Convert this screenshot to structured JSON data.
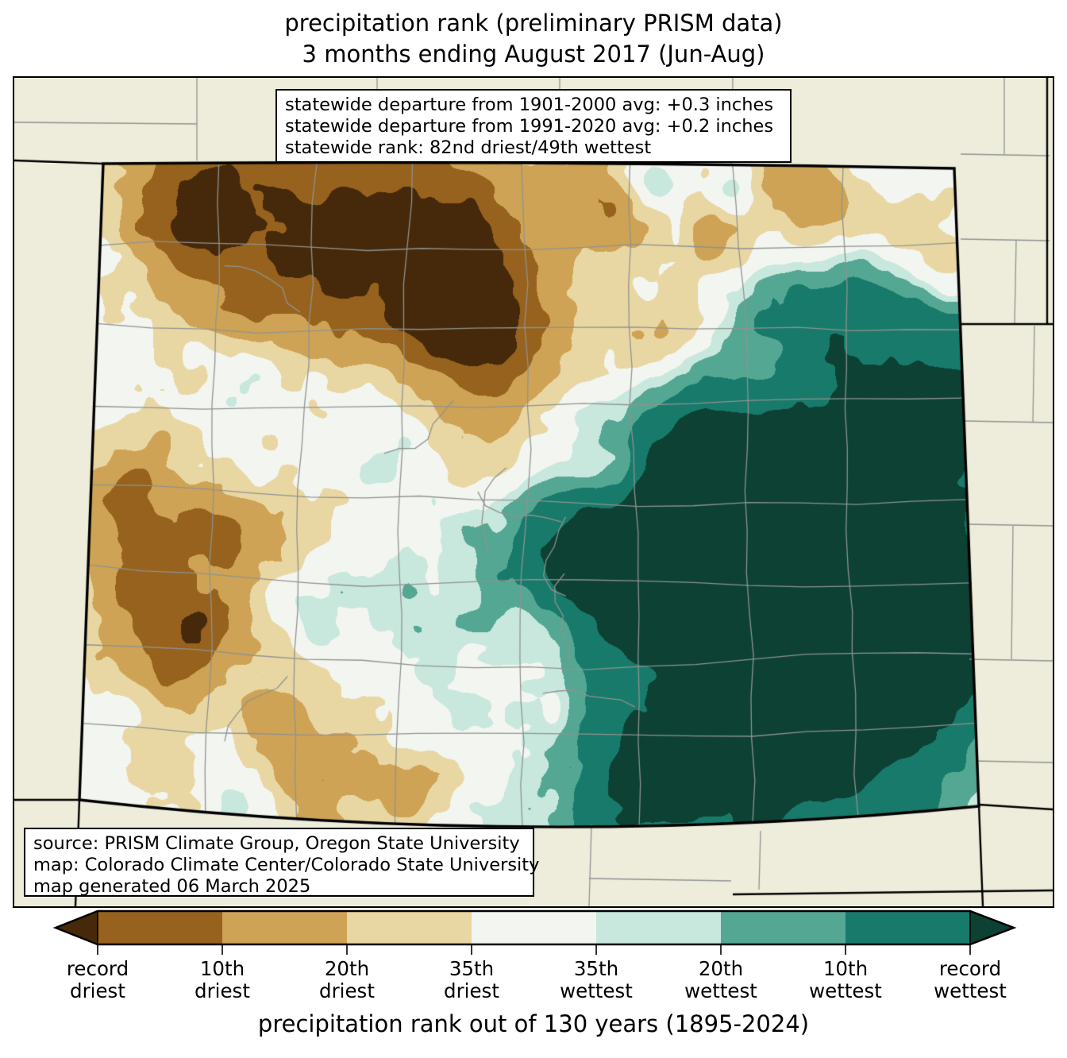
{
  "title": {
    "line1": "precipitation rank (preliminary PRISM data)",
    "line2": "3 months ending August 2017 (Jun-Aug)"
  },
  "stats_box": {
    "lines": [
      "statewide departure from 1901-2000 avg: +0.3 inches",
      "statewide departure from 1991-2020 avg: +0.2 inches",
      "statewide rank: 82nd driest/49th wettest"
    ]
  },
  "source_box": {
    "lines": [
      "source: PRISM Climate Group, Oregon State University",
      "map: Colorado Climate Center/Colorado State University",
      "map generated 06 March 2025"
    ]
  },
  "legend": {
    "caption": "precipitation rank out of 130 years (1895-2024)",
    "labels": [
      "record\ndriest",
      "10th\ndriest",
      "20th\ndriest",
      "35th\ndriest",
      "35th\nwettest",
      "20th\nwettest",
      "10th\nwettest",
      "record\nwettest"
    ],
    "segment_order": [
      "driest_10",
      "driest_20",
      "driest_35",
      "near_normal",
      "wettest_35",
      "wettest_20",
      "wettest_10"
    ],
    "arrow_left": "record_driest",
    "arrow_right": "record_wettest"
  },
  "palette": {
    "record_driest": "#46290a",
    "driest_10": "#96621d",
    "driest_20": "#cfa355",
    "driest_35": "#e9d7a3",
    "near_normal": "#f3f5f1",
    "wettest_35": "#c8e8de",
    "wettest_20": "#54a793",
    "wettest_10": "#187a6b",
    "record_wettest": "#0c4134"
  },
  "map": {
    "region": "Colorado",
    "quantity": "precipitation rank",
    "outside_fill": "#eeeddb",
    "county_line_color": "#8f9390",
    "state_border_color": "#000000",
    "field": {
      "thresholds": [
        -0.6,
        -0.4,
        -0.22,
        -0.08,
        0.08,
        0.18,
        0.34,
        0.62
      ],
      "bins": [
        "record_driest",
        "driest_10",
        "driest_20",
        "driest_35",
        "near_normal",
        "wettest_35",
        "wettest_20",
        "wettest_10",
        "record_wettest"
      ],
      "noise": [
        {
          "scale": 95,
          "amp": 0.13
        },
        {
          "scale": 38,
          "amp": 0.08
        },
        {
          "scale": 17,
          "amp": 0.04
        }
      ],
      "centers": [
        {
          "u": 0.2,
          "v": 0.05,
          "s": 0.11,
          "a": -0.45
        },
        {
          "u": 0.34,
          "v": 0.16,
          "s": 0.09,
          "a": -0.48
        },
        {
          "u": 0.1,
          "v": 0.09,
          "s": 0.06,
          "a": -0.38
        },
        {
          "u": 0.44,
          "v": 0.08,
          "s": 0.06,
          "a": -0.4
        },
        {
          "u": 0.475,
          "v": 0.3,
          "s": 0.07,
          "a": -0.52
        },
        {
          "u": 0.42,
          "v": 0.22,
          "s": 0.06,
          "a": -0.35
        },
        {
          "u": 0.57,
          "v": 0.06,
          "s": 0.05,
          "a": -0.33
        },
        {
          "u": 0.64,
          "v": 0.27,
          "s": 0.055,
          "a": -0.4
        },
        {
          "u": 0.83,
          "v": 0.05,
          "s": 0.05,
          "a": -0.36
        },
        {
          "u": 0.96,
          "v": 0.14,
          "s": 0.045,
          "a": -0.32
        },
        {
          "u": 0.72,
          "v": 0.1,
          "s": 0.04,
          "a": -0.3
        },
        {
          "u": 0.045,
          "v": 0.5,
          "s": 0.055,
          "a": -0.35
        },
        {
          "u": 0.05,
          "v": 0.68,
          "s": 0.065,
          "a": -0.4
        },
        {
          "u": 0.13,
          "v": 0.73,
          "s": 0.05,
          "a": -0.45
        },
        {
          "u": 0.16,
          "v": 0.57,
          "s": 0.045,
          "a": -0.28
        },
        {
          "u": 0.27,
          "v": 0.93,
          "s": 0.05,
          "a": -0.38
        },
        {
          "u": 0.37,
          "v": 0.96,
          "s": 0.04,
          "a": -0.3
        },
        {
          "u": 0.21,
          "v": 0.84,
          "s": 0.04,
          "a": -0.25
        },
        {
          "u": 0.6,
          "v": 0.47,
          "s": 0.03,
          "a": -0.28
        },
        {
          "u": 0.655,
          "v": 0.68,
          "s": 0.025,
          "a": -0.22
        },
        {
          "u": 0.8,
          "v": 0.58,
          "s": 0.17,
          "a": 0.7
        },
        {
          "u": 0.68,
          "v": 0.52,
          "s": 0.08,
          "a": 0.45
        },
        {
          "u": 0.63,
          "v": 0.63,
          "s": 0.07,
          "a": 0.45
        },
        {
          "u": 0.545,
          "v": 0.6,
          "s": 0.05,
          "a": 0.4
        },
        {
          "u": 0.76,
          "v": 0.88,
          "s": 0.11,
          "a": 0.6
        },
        {
          "u": 0.62,
          "v": 0.93,
          "s": 0.07,
          "a": 0.42
        },
        {
          "u": 0.93,
          "v": 0.78,
          "s": 0.11,
          "a": 0.58
        },
        {
          "u": 0.96,
          "v": 0.38,
          "s": 0.09,
          "a": 0.55
        },
        {
          "u": 0.88,
          "v": 0.2,
          "s": 0.05,
          "a": 0.32
        },
        {
          "u": 0.64,
          "v": 0.035,
          "s": 0.022,
          "a": 0.3
        },
        {
          "u": 0.735,
          "v": 0.05,
          "s": 0.02,
          "a": 0.26
        },
        {
          "u": 0.43,
          "v": 0.62,
          "s": 0.045,
          "a": 0.14
        },
        {
          "u": 0.37,
          "v": 0.75,
          "s": 0.04,
          "a": 0.13
        }
      ]
    }
  }
}
